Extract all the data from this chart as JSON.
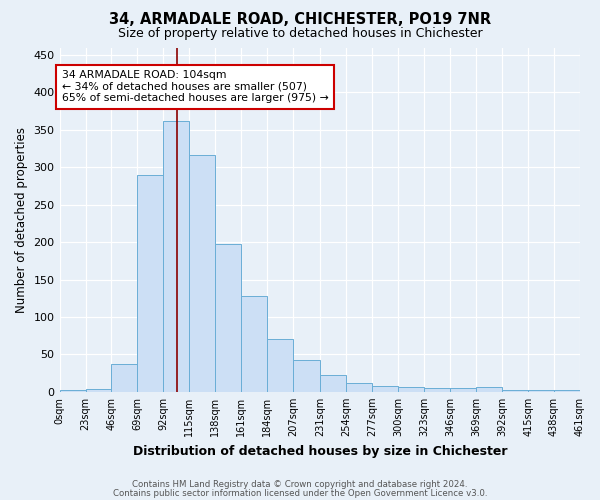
{
  "title": "34, ARMADALE ROAD, CHICHESTER, PO19 7NR",
  "subtitle": "Size of property relative to detached houses in Chichester",
  "xlabel": "Distribution of detached houses by size in Chichester",
  "ylabel": "Number of detached properties",
  "footer_line1": "Contains HM Land Registry data © Crown copyright and database right 2024.",
  "footer_line2": "Contains public sector information licensed under the Open Government Licence v3.0.",
  "bin_labels": [
    "0sqm",
    "23sqm",
    "46sqm",
    "69sqm",
    "92sqm",
    "115sqm",
    "138sqm",
    "161sqm",
    "184sqm",
    "207sqm",
    "231sqm",
    "254sqm",
    "277sqm",
    "300sqm",
    "323sqm",
    "346sqm",
    "369sqm",
    "392sqm",
    "415sqm",
    "438sqm",
    "461sqm"
  ],
  "bar_values": [
    3,
    4,
    37,
    290,
    362,
    316,
    197,
    128,
    70,
    42,
    22,
    12,
    8,
    6,
    5,
    5,
    6,
    3,
    3,
    2
  ],
  "bin_edges": [
    0,
    23,
    46,
    69,
    92,
    115,
    138,
    161,
    184,
    207,
    231,
    254,
    277,
    300,
    323,
    346,
    369,
    392,
    415,
    438,
    461
  ],
  "property_size": 104,
  "bar_facecolor": "#ccdff5",
  "bar_edgecolor": "#6aaed6",
  "vline_color": "#8b0000",
  "background_color": "#e8f0f8",
  "grid_color": "#ffffff",
  "annotation_text": "34 ARMADALE ROAD: 104sqm\n← 34% of detached houses are smaller (507)\n65% of semi-detached houses are larger (975) →",
  "annotation_box_edgecolor": "#cc0000",
  "ylim": [
    0,
    460
  ],
  "yticks": [
    0,
    50,
    100,
    150,
    200,
    250,
    300,
    350,
    400,
    450
  ]
}
